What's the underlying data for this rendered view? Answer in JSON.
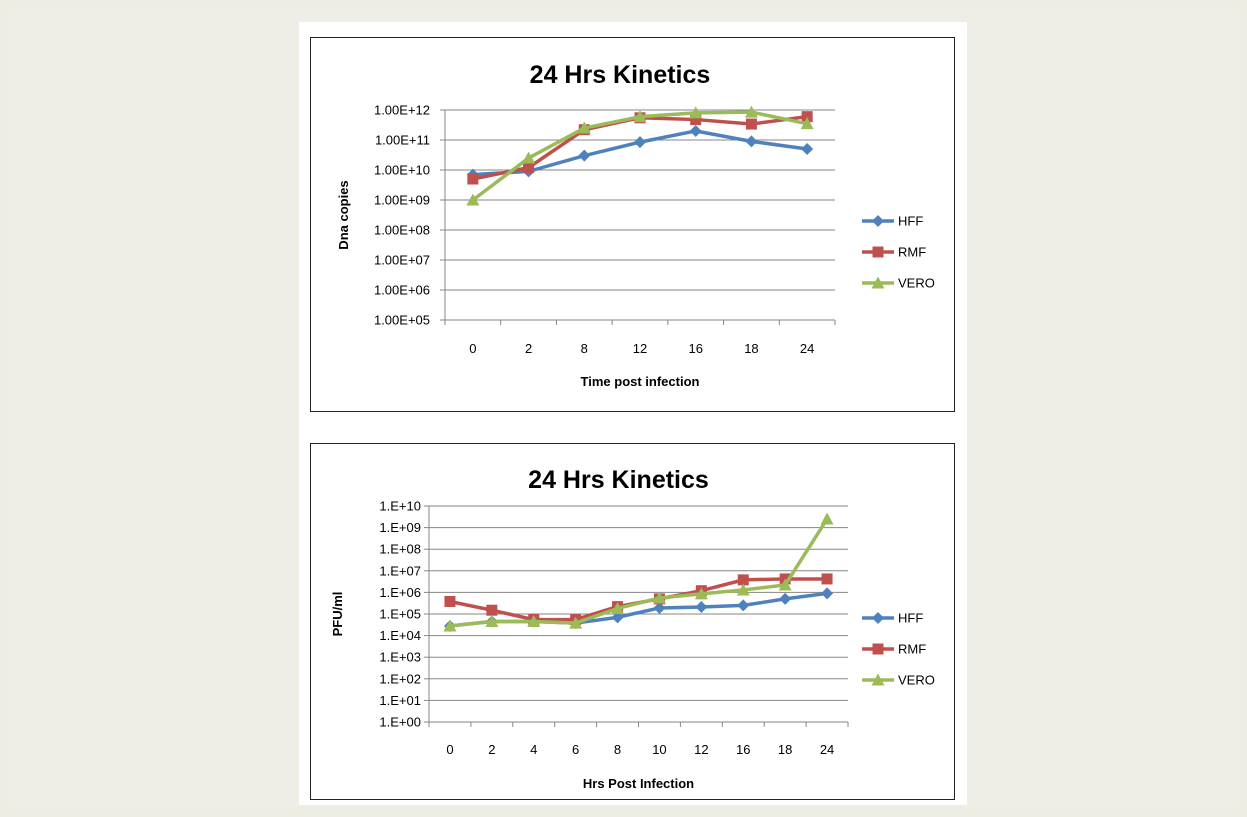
{
  "colors": {
    "HFF": "#4f81bd",
    "RMF": "#c0504d",
    "VERO": "#9bbb59",
    "grid": "#868686",
    "background": "#eeede4"
  },
  "chart_data": [
    {
      "type": "line",
      "title": "24 Hrs Kinetics",
      "xlabel": "Time post infection",
      "ylabel": "Dna copies",
      "y_scale": "log",
      "ylim": [
        100000,
        1000000000000
      ],
      "y_ticks": [
        "1.00E+05",
        "1.00E+06",
        "1.00E+07",
        "1.00E+08",
        "1.00E+09",
        "1.00E+10",
        "1.00E+11",
        "1.00E+12"
      ],
      "categories": [
        "0",
        "2",
        "8",
        "12",
        "16",
        "18",
        "24"
      ],
      "grid": true,
      "legend_position": "right",
      "series": [
        {
          "name": "HFF",
          "marker": "diamond",
          "values": [
            7000000000,
            9000000000,
            30000000000,
            85000000000,
            200000000000,
            90000000000,
            50000000000
          ]
        },
        {
          "name": "RMF",
          "marker": "square",
          "values": [
            5000000000,
            12000000000,
            220000000000,
            550000000000,
            480000000000,
            340000000000,
            600000000000
          ]
        },
        {
          "name": "VERO",
          "marker": "triangle",
          "values": [
            1000000000,
            25000000000,
            250000000000,
            600000000000,
            800000000000,
            850000000000,
            350000000000
          ]
        }
      ]
    },
    {
      "type": "line",
      "title": "24 Hrs Kinetics",
      "xlabel": "Hrs Post Infection",
      "ylabel": "PFU/ml",
      "y_scale": "log",
      "ylim": [
        1,
        10000000000
      ],
      "y_ticks": [
        "1.E+00",
        "1.E+01",
        "1.E+02",
        "1.E+03",
        "1.E+04",
        "1.E+05",
        "1.E+06",
        "1.E+07",
        "1.E+08",
        "1.E+09",
        "1.E+10"
      ],
      "categories": [
        "0",
        "2",
        "4",
        "6",
        "8",
        "10",
        "12",
        "16",
        "18",
        "24"
      ],
      "grid": true,
      "legend_position": "right",
      "series": [
        {
          "name": "HFF",
          "marker": "diamond",
          "values": [
            28000,
            45000,
            45000,
            38000,
            70000,
            190000,
            210000,
            250000,
            500000,
            900000
          ]
        },
        {
          "name": "RMF",
          "marker": "square",
          "values": [
            380000,
            150000,
            55000,
            55000,
            220000,
            500000,
            1200000,
            3800000,
            4200000,
            4200000
          ]
        },
        {
          "name": "VERO",
          "marker": "triangle",
          "values": [
            28000,
            45000,
            45000,
            38000,
            180000,
            550000,
            850000,
            1300000,
            2200000,
            2500000000
          ]
        }
      ]
    }
  ]
}
